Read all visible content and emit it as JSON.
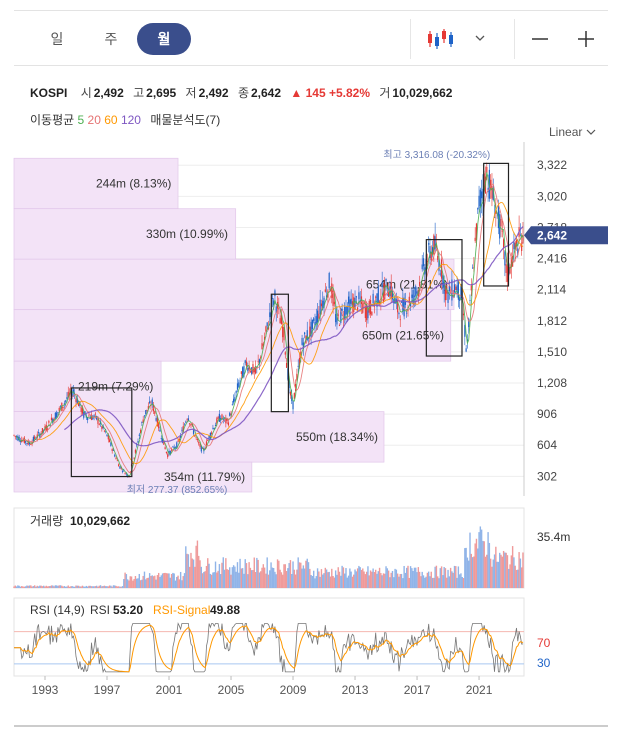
{
  "period_tabs": [
    "일",
    "주",
    "월"
  ],
  "active_tab": "월",
  "toolbar": {
    "chart_type_icon": "candlestick-icon",
    "zoom_out_icon": "minus-icon",
    "zoom_in_icon": "plus-icon"
  },
  "quote": {
    "name": "KOSPI",
    "open_label": "시",
    "open": "2,492",
    "high_label": "고",
    "high": "2,695",
    "low_label": "저",
    "low": "2,492",
    "close_label": "종",
    "close": "2,642",
    "change": "145",
    "change_pct": "+5.82%",
    "volume_label": "거",
    "volume": "10,029,662"
  },
  "ma_legend": {
    "label": "이동평균",
    "periods": [
      "5",
      "20",
      "60",
      "120"
    ],
    "colors": [
      "#4caf50",
      "#e57373",
      "#ff9800",
      "#7e57c2"
    ],
    "profile_label": "매물분석도(7)"
  },
  "scale_label": "Linear",
  "colors": {
    "up": "#e53935",
    "down": "#1e63c8",
    "accent": "#3a4e8c",
    "profile": "#f3e3f7"
  },
  "chart_data": {
    "type": "candlestick",
    "y_ticks": [
      302,
      604,
      906,
      1208,
      1510,
      1812,
      2114,
      2416,
      2718,
      3020,
      3322
    ],
    "ylim": [
      150,
      3470
    ],
    "x_ticks": [
      "1993",
      "1997",
      "2001",
      "2005",
      "2009",
      "2013",
      "2017",
      "2021"
    ],
    "xlim": [
      1991.0,
      2023.9
    ],
    "current_price": "2,642",
    "current_value": 2642,
    "high_marker": "최고 3,316.08 (-20.32%)",
    "low_marker": "최저 277.37 (852.65%)",
    "price_path": [
      [
        1991.0,
        700
      ],
      [
        1992.0,
        620
      ],
      [
        1993.0,
        760
      ],
      [
        1994.0,
        960
      ],
      [
        1994.8,
        1140
      ],
      [
        1995.5,
        900
      ],
      [
        1996.3,
        870
      ],
      [
        1997.0,
        700
      ],
      [
        1997.8,
        400
      ],
      [
        1998.4,
        300
      ],
      [
        1998.8,
        520
      ],
      [
        1999.4,
        900
      ],
      [
        1999.9,
        1020
      ],
      [
        2000.5,
        700
      ],
      [
        2000.9,
        510
      ],
      [
        2001.6,
        620
      ],
      [
        2002.2,
        900
      ],
      [
        2002.8,
        650
      ],
      [
        2003.2,
        540
      ],
      [
        2003.8,
        760
      ],
      [
        2004.3,
        880
      ],
      [
        2004.8,
        820
      ],
      [
        2005.5,
        1200
      ],
      [
        2006.0,
        1400
      ],
      [
        2006.6,
        1300
      ],
      [
        2007.2,
        1650
      ],
      [
        2007.8,
        2050
      ],
      [
        2008.4,
        1700
      ],
      [
        2008.8,
        1100
      ],
      [
        2009.0,
        1000
      ],
      [
        2009.6,
        1600
      ],
      [
        2010.3,
        1750
      ],
      [
        2010.9,
        2000
      ],
      [
        2011.4,
        2200
      ],
      [
        2011.8,
        1800
      ],
      [
        2012.5,
        1950
      ],
      [
        2013.2,
        2000
      ],
      [
        2013.8,
        1900
      ],
      [
        2014.5,
        2050
      ],
      [
        2015.2,
        2150
      ],
      [
        2015.8,
        1900
      ],
      [
        2016.5,
        2000
      ],
      [
        2017.0,
        2100
      ],
      [
        2017.6,
        2400
      ],
      [
        2018.1,
        2550
      ],
      [
        2018.6,
        2300
      ],
      [
        2018.9,
        2050
      ],
      [
        2019.5,
        2150
      ],
      [
        2019.9,
        2050
      ],
      [
        2020.2,
        1500
      ],
      [
        2020.6,
        2300
      ],
      [
        2021.0,
        2950
      ],
      [
        2021.5,
        3250
      ],
      [
        2021.9,
        3000
      ],
      [
        2022.4,
        2700
      ],
      [
        2022.8,
        2250
      ],
      [
        2023.2,
        2450
      ],
      [
        2023.6,
        2600
      ],
      [
        2023.9,
        2642
      ]
    ],
    "volume_profile": [
      {
        "label": "244m (8.13%)",
        "low": 2900,
        "high": 3390
      },
      {
        "label": "330m (10.99%)",
        "low": 2410,
        "high": 2900
      },
      {
        "label": "654m (21.81%)",
        "low": 1920,
        "high": 2410
      },
      {
        "label": "650m (21.65%)",
        "low": 1420,
        "high": 1920
      },
      {
        "label": "219m (7.29%)",
        "low": 930,
        "high": 1420
      },
      {
        "label": "550m (18.34%)",
        "low": 440,
        "high": 930
      },
      {
        "label": "354m (11.79%)",
        "low": 150,
        "high": 440
      }
    ],
    "volume_panel": {
      "label": "거래량",
      "value": "10,029,662",
      "max_label": "35.4m"
    },
    "rsi_panel": {
      "label": "RSI (14,9)",
      "rsi_label": "RSI",
      "rsi_value": "53.20",
      "signal_label": "RSI-Signal",
      "signal_value": "49.88",
      "upper": "70",
      "lower": "30"
    }
  }
}
